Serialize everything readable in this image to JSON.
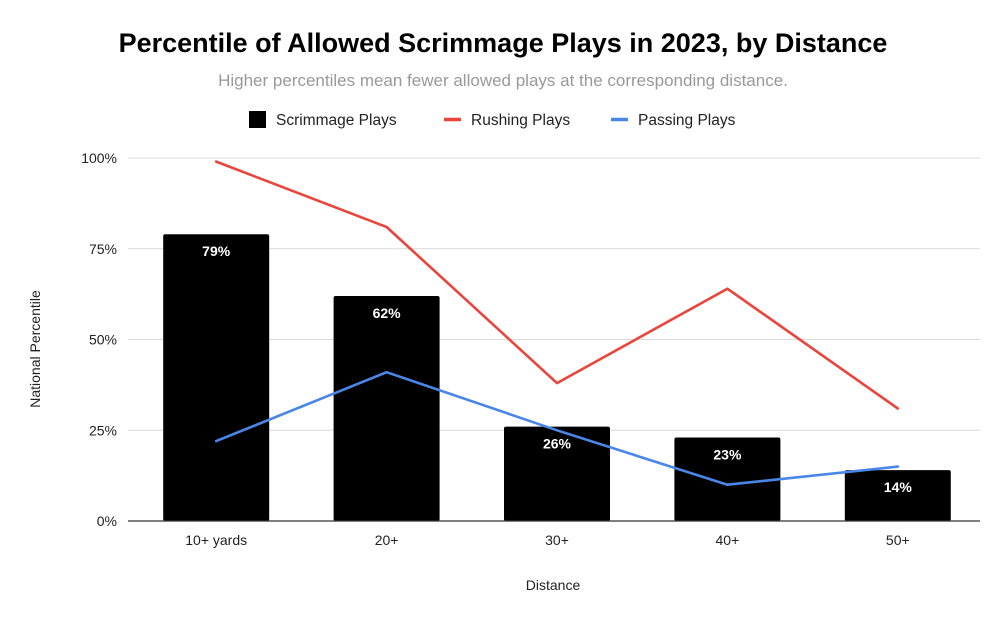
{
  "chart_data": {
    "type": "bar",
    "title": "Percentile of Allowed Scrimmage Plays in 2023, by Distance",
    "subtitle": "Higher percentiles mean fewer allowed plays at the corresponding distance.",
    "xlabel": "Distance",
    "ylabel": "National Percentile",
    "categories": [
      "10+ yards",
      "20+",
      "30+",
      "40+",
      "50+"
    ],
    "ylim": [
      0,
      100
    ],
    "yticks": [
      0,
      25,
      50,
      75,
      100
    ],
    "ytick_labels": [
      "0%",
      "25%",
      "50%",
      "75%",
      "100%"
    ],
    "legend_position": "top",
    "grid": true,
    "series": [
      {
        "name": "Scrimmage Plays",
        "kind": "bar",
        "color": "#000000",
        "values": [
          79,
          62,
          26,
          23,
          14
        ],
        "data_labels": [
          "79%",
          "62%",
          "26%",
          "23%",
          "14%"
        ]
      },
      {
        "name": "Rushing Plays",
        "kind": "line",
        "color": "#e8453c",
        "values": [
          99,
          81,
          38,
          64,
          31
        ]
      },
      {
        "name": "Passing Plays",
        "kind": "line",
        "color": "#4a86e8",
        "values": [
          22,
          41,
          25,
          10,
          15
        ]
      }
    ]
  }
}
